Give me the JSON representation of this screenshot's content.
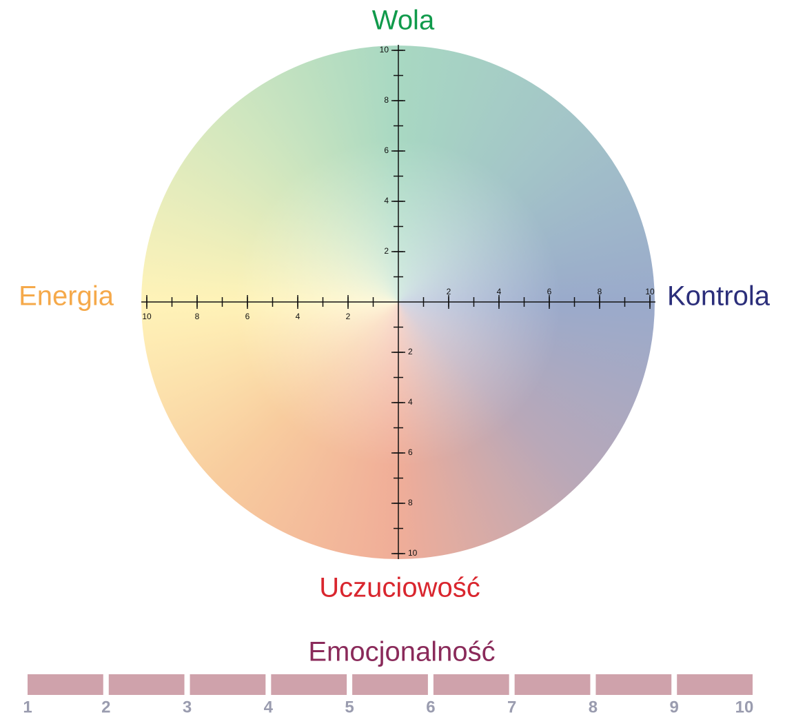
{
  "axes": {
    "top": {
      "label": "Wola",
      "ticks": [
        2,
        4,
        6,
        8,
        10
      ]
    },
    "right": {
      "label": "Kontrola",
      "ticks": [
        2,
        4,
        6,
        8,
        10
      ]
    },
    "bottom": {
      "label": "Uczuciowość",
      "ticks": [
        2,
        4,
        6,
        8,
        10
      ]
    },
    "left": {
      "label": "Energia",
      "ticks": [
        2,
        4,
        6,
        8,
        10
      ]
    }
  },
  "lim": [
    0,
    10
  ],
  "scale": {
    "title": "Emocjonalność",
    "labels": [
      1,
      2,
      3,
      4,
      5,
      6,
      7,
      8,
      9,
      10
    ]
  }
}
